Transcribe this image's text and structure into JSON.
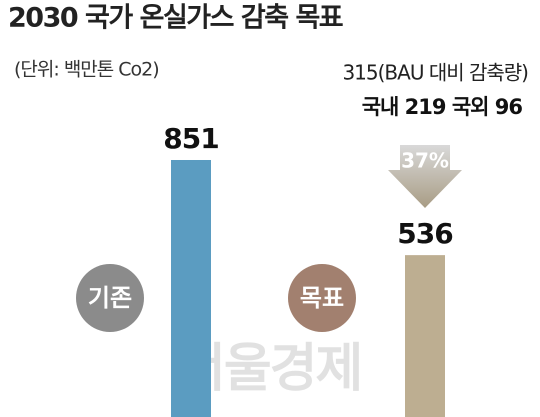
{
  "chart_data": {
    "type": "bar",
    "title": "2030 국가 온실가스 감축 목표",
    "subtitle": "(단위: 백만톤 Co2)",
    "categories": [
      "기존",
      "목표"
    ],
    "values": [
      851,
      536
    ],
    "colors": [
      "#5b9cc1",
      "#bdae91"
    ],
    "annotations": {
      "reduction": "315(BAU 대비 감축량)",
      "breakdown": "국내 219   국외 96",
      "arrow_label": "37%"
    },
    "watermark": "서울경제"
  }
}
